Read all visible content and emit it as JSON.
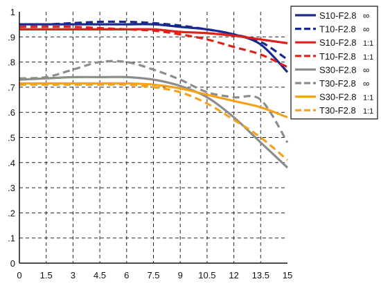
{
  "chart_data": {
    "type": "line",
    "title": "",
    "xlabel": "",
    "ylabel": "",
    "xlim": [
      0,
      15
    ],
    "ylim": [
      0,
      1
    ],
    "x_ticks": [
      "0",
      "1.5",
      "3",
      "4.5",
      "6",
      "7.5",
      "9",
      "10.5",
      "12",
      "13.5",
      "15"
    ],
    "y_ticks": [
      "0",
      ".1",
      ".2",
      ".3",
      ".4",
      ".5",
      ".6",
      ".7",
      ".8",
      ".9",
      "1"
    ],
    "grid": true,
    "legend_position": "right",
    "x": [
      0,
      1.5,
      3,
      4.5,
      6,
      7.5,
      9,
      10.5,
      12,
      13.5,
      15
    ],
    "series": [
      {
        "name": "S10-F2.8",
        "suffix": "∞",
        "color": "#1a2a8c",
        "dash": false,
        "values": [
          0.95,
          0.95,
          0.95,
          0.95,
          0.95,
          0.95,
          0.94,
          0.93,
          0.91,
          0.87,
          0.76
        ]
      },
      {
        "name": "T10-F2.8",
        "suffix": "∞",
        "color": "#1a2a8c",
        "dash": true,
        "values": [
          0.95,
          0.95,
          0.955,
          0.96,
          0.96,
          0.955,
          0.945,
          0.93,
          0.91,
          0.88,
          0.81
        ]
      },
      {
        "name": "S10-F2.8",
        "suffix": "1:1",
        "color": "#e0201b",
        "dash": false,
        "values": [
          0.93,
          0.93,
          0.93,
          0.93,
          0.93,
          0.93,
          0.92,
          0.915,
          0.905,
          0.89,
          0.875
        ]
      },
      {
        "name": "T10-F2.8",
        "suffix": "1:1",
        "color": "#e0201b",
        "dash": true,
        "values": [
          0.94,
          0.94,
          0.94,
          0.935,
          0.93,
          0.925,
          0.91,
          0.89,
          0.86,
          0.83,
          0.78
        ]
      },
      {
        "name": "S30-F2.8",
        "suffix": "∞",
        "color": "#8c8c8c",
        "dash": false,
        "values": [
          0.73,
          0.735,
          0.74,
          0.74,
          0.74,
          0.73,
          0.705,
          0.66,
          0.58,
          0.48,
          0.38
        ]
      },
      {
        "name": "T30-F2.8",
        "suffix": "∞",
        "color": "#8c8c8c",
        "dash": true,
        "values": [
          0.735,
          0.74,
          0.77,
          0.8,
          0.8,
          0.77,
          0.73,
          0.68,
          0.66,
          0.65,
          0.48
        ]
      },
      {
        "name": "S30-F2.8",
        "suffix": "1:1",
        "color": "#f5a21b",
        "dash": false,
        "values": [
          0.715,
          0.715,
          0.715,
          0.715,
          0.715,
          0.71,
          0.695,
          0.67,
          0.645,
          0.62,
          0.58
        ]
      },
      {
        "name": "T30-F2.8",
        "suffix": "1:1",
        "color": "#f5a21b",
        "dash": true,
        "values": [
          0.71,
          0.71,
          0.71,
          0.71,
          0.71,
          0.7,
          0.68,
          0.635,
          0.57,
          0.5,
          0.41
        ]
      }
    ]
  }
}
